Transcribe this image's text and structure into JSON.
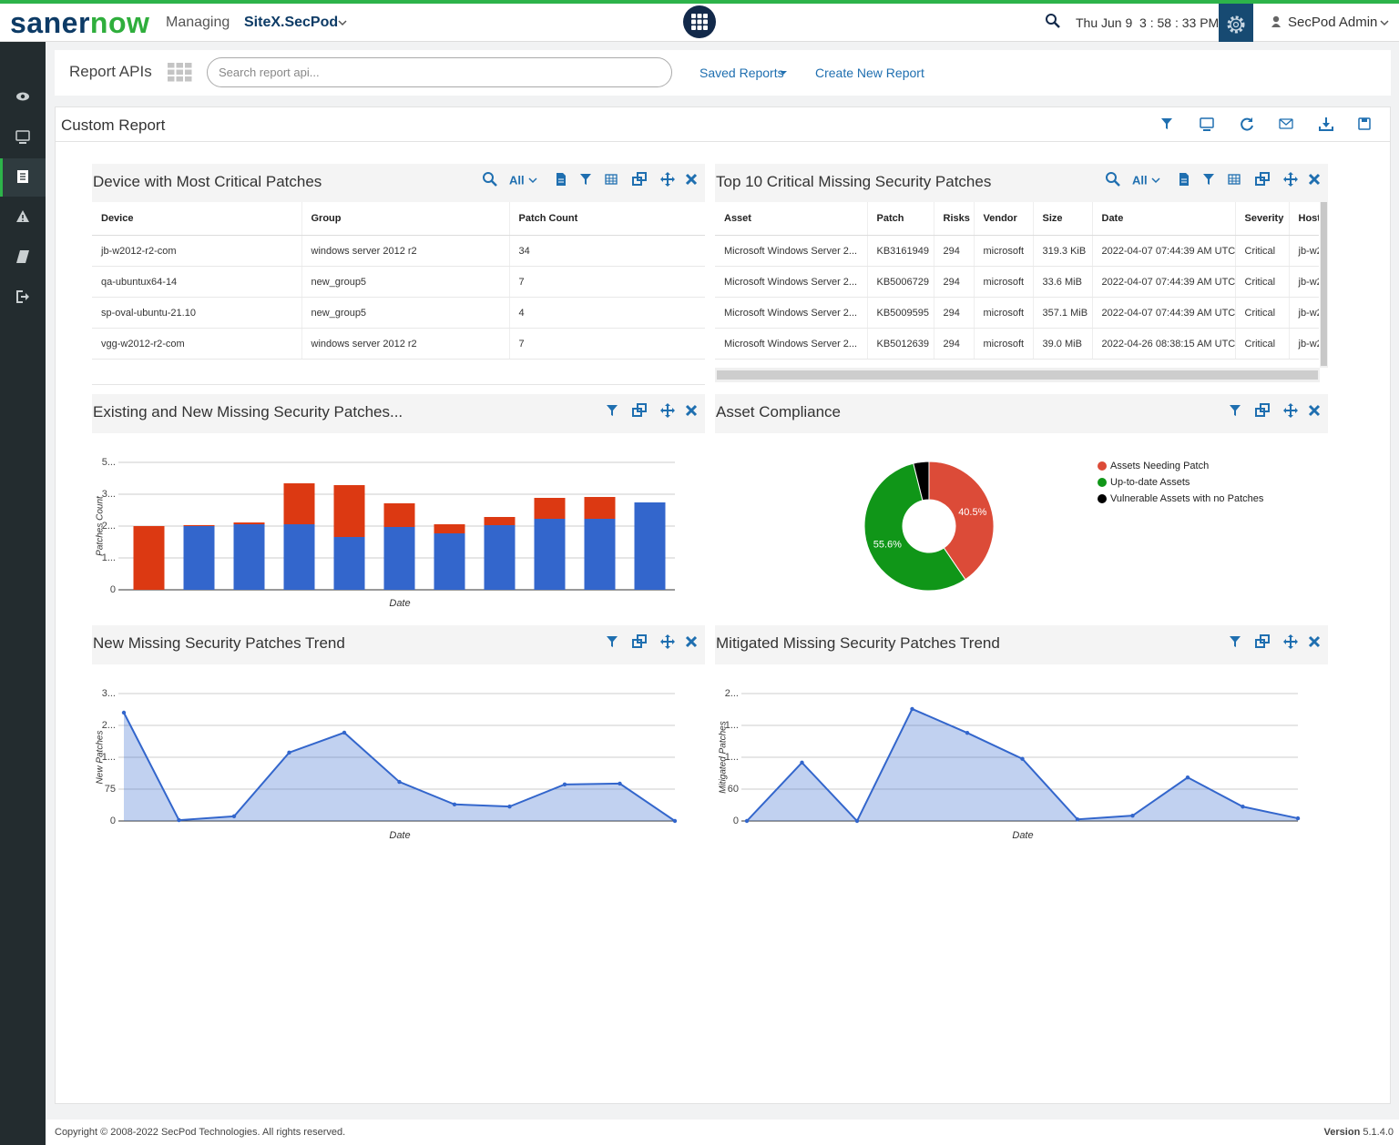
{
  "header": {
    "logo_1": "saner",
    "logo_2": "now",
    "managing": "Managing",
    "site": "SiteX.SecPod",
    "datetime": "Thu Jun 9  3 : 58 : 33 PM",
    "user": "SecPod Admin"
  },
  "toolbar": {
    "title": "Report APIs",
    "search_placeholder": "Search report api...",
    "saved_reports": "Saved Reports",
    "create_report": "Create New Report"
  },
  "report": {
    "title": "Custom Report"
  },
  "tables": [
    {
      "title": "Device with Most Critical Patches",
      "filter": "All",
      "columns": [
        "Device",
        "Group",
        "Patch Count"
      ],
      "rows": [
        [
          "jb-w2012-r2-com",
          "windows server 2012 r2",
          34
        ],
        [
          "qa-ubuntux64-14",
          "new_group5",
          7
        ],
        [
          "sp-oval-ubuntu-21.10",
          "new_group5",
          4
        ],
        [
          "vgg-w2012-r2-com",
          "windows server 2012 r2",
          7
        ]
      ]
    },
    {
      "title": "Top 10 Critical Missing Security Patches",
      "filter": "All",
      "columns": [
        "Asset",
        "Patch",
        "Risks",
        "Vendor",
        "Size",
        "Date",
        "Severity",
        "Host"
      ],
      "rows": [
        [
          "Microsoft Windows Server 2...",
          "KB3161949",
          294,
          "microsoft",
          "319.3 KiB",
          "2022-04-07 07:44:39 AM UTC",
          "Critical",
          "jb-w2"
        ],
        [
          "Microsoft Windows Server 2...",
          "KB5006729",
          294,
          "microsoft",
          "33.6 MiB",
          "2022-04-07 07:44:39 AM UTC",
          "Critical",
          "jb-w2"
        ],
        [
          "Microsoft Windows Server 2...",
          "KB5009595",
          294,
          "microsoft",
          "357.1 MiB",
          "2022-04-07 07:44:39 AM UTC",
          "Critical",
          "jb-w2"
        ],
        [
          "Microsoft Windows Server 2...",
          "KB5012639",
          294,
          "microsoft",
          "39.0 MiB",
          "2022-04-26 08:38:15 AM UTC",
          "Critical",
          "jb-w2"
        ]
      ]
    }
  ],
  "chart_data": [
    {
      "type": "bar",
      "title": "Existing and New Missing Security Patches...",
      "stacked": true,
      "x_label": "Date",
      "y_label": "Patches Count",
      "categories": [
        null,
        null,
        null,
        null,
        null,
        null,
        null,
        null,
        null,
        null,
        null
      ],
      "series": [
        {
          "color": "#3366cc",
          "values": [
            0,
            2600,
            2674,
            2674,
            2154,
            2563,
            2303,
            2637,
            2897,
            2897,
            3566
          ]
        },
        {
          "color": "#dc3912",
          "values": [
            2600,
            40,
            74,
            1671,
            2117,
            966,
            371,
            334,
            854,
            891,
            0
          ]
        }
      ],
      "ylim": [
        0,
        5200
      ],
      "yticks": [
        0,
        {
          "value": 1300,
          "label": "1..."
        },
        {
          "value": 2600,
          "label": "2..."
        },
        {
          "value": 3900,
          "label": "3..."
        },
        {
          "value": 5200,
          "label": "5..."
        }
      ],
      "grid": true
    },
    {
      "type": "pie",
      "title": "Asset Compliance",
      "donut": true,
      "legend": "top-right",
      "categories": [
        "Assets Needing Patch",
        "Up-to-date Assets",
        "Vulnerable Assets with no Patches"
      ],
      "values": [
        40.5,
        55.6,
        3.9
      ],
      "value_labels": [
        "40.5%",
        "55.6%",
        null
      ],
      "colors": [
        "#dc4b38",
        "#109618",
        "#000000"
      ]
    },
    {
      "type": "area",
      "title": "New Missing Security Patches Trend",
      "x_label": "Date",
      "y_label": "New Patches",
      "categories": [
        null,
        null,
        null,
        null,
        null,
        null,
        null,
        null,
        null,
        null,
        null
      ],
      "series": [
        {
          "color": "#3366cc",
          "values": [
            255,
            2,
            11,
            161,
            208,
            92,
            39,
            34,
            86,
            88,
            0
          ]
        }
      ],
      "ylim": [
        0,
        300
      ],
      "yticks": [
        0,
        75,
        {
          "value": 150,
          "label": "1..."
        },
        {
          "value": 225,
          "label": "2..."
        },
        {
          "value": 300,
          "label": "3..."
        }
      ],
      "grid": true
    },
    {
      "type": "area",
      "title": "Mitigated Missing Security Patches Trend",
      "x_label": "Date",
      "y_label": "Mitigated Patches",
      "categories": [
        null,
        null,
        null,
        null,
        null,
        null,
        null,
        null,
        null,
        null,
        null
      ],
      "series": [
        {
          "color": "#3366cc",
          "values": [
            0,
            110,
            0,
            211,
            166,
            117,
            3,
            10,
            82,
            27,
            5
          ]
        }
      ],
      "ylim": [
        0,
        240
      ],
      "yticks": [
        0,
        60,
        {
          "value": 120,
          "label": "1..."
        },
        {
          "value": 180,
          "label": "1..."
        },
        {
          "value": 240,
          "label": "2..."
        }
      ],
      "grid": true
    }
  ],
  "footer": {
    "copyright": "Copyright © 2008-2022 SecPod Technologies. All rights reserved.",
    "version_label": "Version",
    "version": "5.1.4.0"
  }
}
